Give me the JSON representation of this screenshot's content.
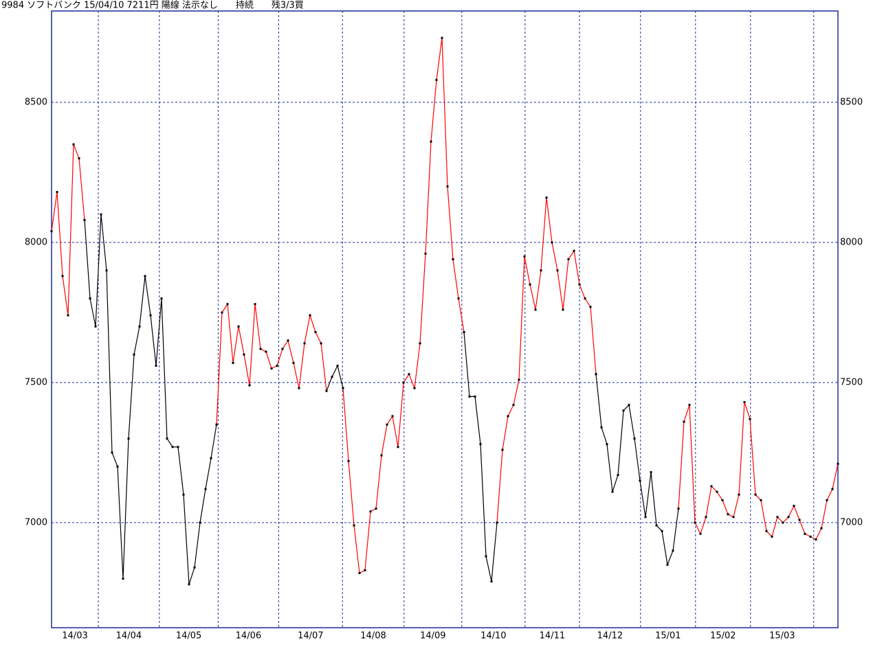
{
  "chart_data": {
    "type": "line",
    "title": "9984 ソフトバンク 15/04/10 7211円 陽線 法示なし　　持続　　残3/3買",
    "xlim": [
      0,
      143
    ],
    "ylim": [
      6625,
      8826
    ],
    "yticks": [
      7000,
      7500,
      8000,
      8500
    ],
    "xticks": [
      {
        "value": 0,
        "label": "14/03"
      },
      {
        "value": 8.5,
        "label": "14/04"
      },
      {
        "value": 19.6,
        "label": "14/05"
      },
      {
        "value": 30.3,
        "label": "14/06"
      },
      {
        "value": 41.3,
        "label": "14/07"
      },
      {
        "value": 52.9,
        "label": "14/08"
      },
      {
        "value": 64.1,
        "label": "14/09"
      },
      {
        "value": 74.6,
        "label": "14/10"
      },
      {
        "value": 86.1,
        "label": "14/11"
      },
      {
        "value": 96,
        "label": "14/12"
      },
      {
        "value": 107.1,
        "label": "15/01"
      },
      {
        "value": 117.1,
        "label": "15/02"
      },
      {
        "value": 127.1,
        "label": "15/03"
      },
      {
        "value": 138.6,
        "label": null
      }
    ],
    "grid": true,
    "marker_color": "#000000",
    "series": [
      {
        "color": "#000000",
        "values": [
          null,
          null,
          null,
          null,
          null,
          null,
          8080,
          7800,
          7700,
          8100,
          7900,
          7250,
          7200,
          6800,
          7300,
          7600,
          7700,
          7880,
          7740,
          7560,
          7800,
          7300,
          7270,
          7270,
          7100,
          6780,
          6840,
          7000,
          7120,
          7230,
          7350,
          null,
          null,
          null,
          null,
          null,
          null,
          null,
          null,
          null,
          null,
          null,
          null,
          null,
          null,
          null,
          null,
          null,
          null,
          null,
          7470,
          7520,
          7560,
          7480,
          null,
          null,
          null,
          null,
          null,
          null,
          null,
          null,
          null,
          null,
          null,
          null,
          null,
          null,
          null,
          null,
          null,
          null,
          null,
          null,
          null,
          7680,
          7450,
          7450,
          7280,
          6880,
          6790,
          7000,
          null,
          null,
          null,
          null,
          null,
          null,
          null,
          null,
          null,
          null,
          null,
          null,
          null,
          null,
          null,
          null,
          null,
          7530,
          7340,
          7280,
          7110,
          7170,
          7400,
          7420,
          7300,
          7150,
          7020,
          7180,
          6990,
          6970,
          6850,
          6900,
          7050,
          null,
          null,
          null,
          null,
          null,
          null,
          null,
          null,
          null,
          null,
          null,
          null,
          null,
          null,
          null,
          null,
          null,
          null,
          null,
          null,
          null,
          null,
          null,
          null,
          null,
          null,
          null,
          null,
          null
        ]
      },
      {
        "color": "#ff0000",
        "values": [
          8040,
          8180,
          7880,
          7740,
          8350,
          8300,
          8080,
          null,
          null,
          null,
          null,
          null,
          null,
          null,
          null,
          null,
          null,
          null,
          null,
          null,
          null,
          null,
          null,
          null,
          null,
          null,
          null,
          null,
          null,
          null,
          7350,
          7750,
          7780,
          7570,
          7700,
          7600,
          7490,
          7780,
          7620,
          7610,
          7550,
          7560,
          7620,
          7650,
          7570,
          7480,
          7640,
          7740,
          7680,
          7640,
          7470,
          null,
          null,
          7480,
          7220,
          6990,
          6820,
          6830,
          7040,
          7050,
          7240,
          7350,
          7380,
          7270,
          7500,
          7530,
          7480,
          7640,
          7960,
          8360,
          8580,
          8730,
          8200,
          7940,
          7800,
          7680,
          null,
          null,
          null,
          null,
          null,
          7000,
          7260,
          7380,
          7420,
          7510,
          7950,
          7850,
          7760,
          7900,
          8160,
          8000,
          7900,
          7760,
          7940,
          7970,
          7850,
          7800,
          7770,
          7530,
          null,
          null,
          null,
          null,
          null,
          null,
          null,
          null,
          null,
          null,
          null,
          null,
          null,
          null,
          7050,
          7360,
          7420,
          7000,
          6960,
          7020,
          7130,
          7110,
          7080,
          7030,
          7020,
          7100,
          7430,
          7370,
          7100,
          7080,
          6970,
          6950,
          7020,
          7000,
          7020,
          7060,
          7010,
          6960,
          6950,
          6940,
          6980,
          7080,
          7120,
          7210
        ]
      }
    ]
  }
}
